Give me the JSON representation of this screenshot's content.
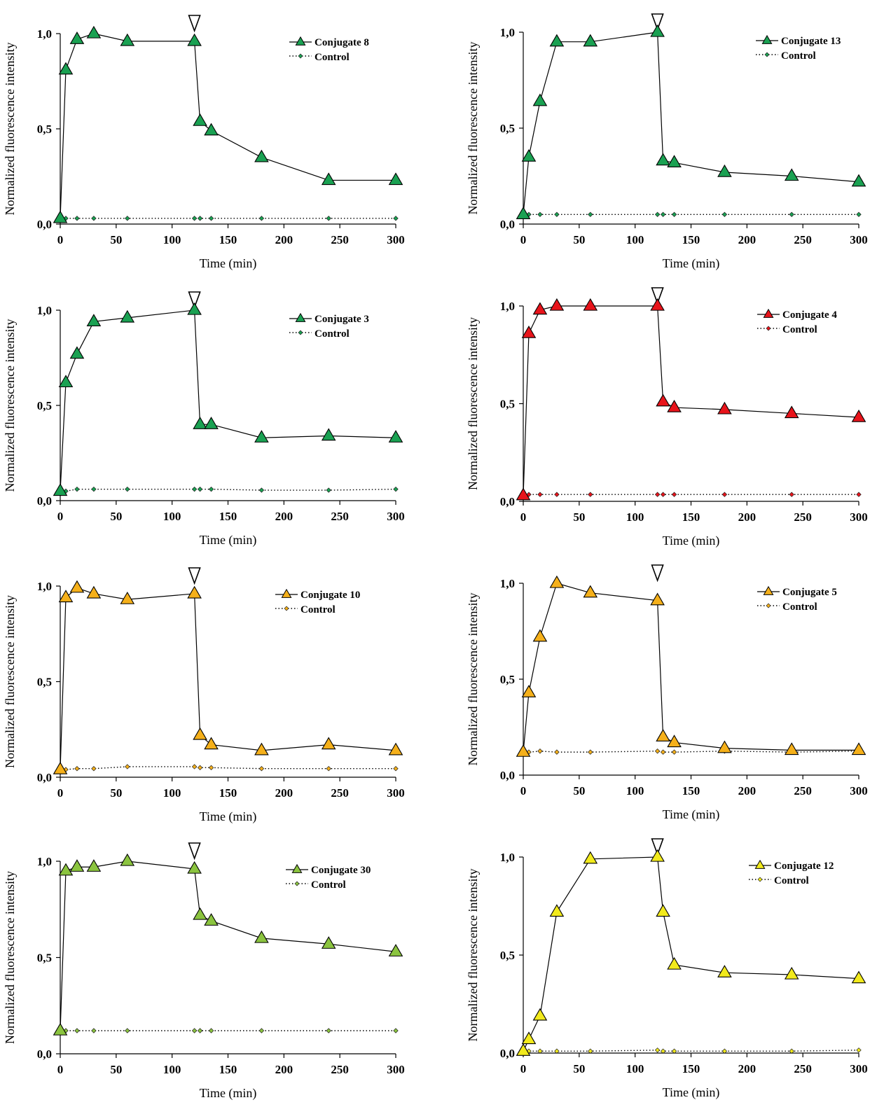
{
  "figure": {
    "panels": [
      {
        "id": "conj8",
        "legend": {
          "series_label": "Conjugate 8",
          "control_label": "Control"
        },
        "arrow": "▽"
      },
      {
        "id": "conj13",
        "legend": {
          "series_label": "Conjugate 13",
          "control_label": "Control"
        },
        "arrow": "▽"
      },
      {
        "id": "conj3",
        "legend": {
          "series_label": "Conjugate 3",
          "control_label": "Control"
        },
        "arrow": "▽"
      },
      {
        "id": "conj4",
        "legend": {
          "series_label": "Conjugate 4",
          "control_label": "Control"
        },
        "arrow": "▽"
      },
      {
        "id": "conj10",
        "legend": {
          "series_label": "Conjugate 10",
          "control_label": "Control"
        },
        "arrow": "▽"
      },
      {
        "id": "conj5",
        "legend": {
          "series_label": "Conjugate 5",
          "control_label": "Control"
        },
        "arrow": "▽"
      },
      {
        "id": "conj30",
        "legend": {
          "series_label": "Conjugate 30",
          "control_label": "Control"
        },
        "arrow": "▽"
      },
      {
        "id": "conj12",
        "legend": {
          "series_label": "Conjugate 12",
          "control_label": "Control"
        },
        "arrow": "▽"
      }
    ]
  },
  "chart_data": [
    {
      "type": "line",
      "xlabel": "Time (min)",
      "ylabel": "Normalized fluorescence intensity",
      "xlim": [
        0,
        300
      ],
      "ylim": [
        0,
        1.0
      ],
      "x_ticks": [
        "0",
        "50",
        "100",
        "150",
        "200",
        "250",
        "300"
      ],
      "y_ticks": [
        "0,0",
        "0,5",
        "1,0"
      ],
      "legend_position": "top-right",
      "grid": false,
      "marker_color": "#1aa152",
      "annotation": {
        "symbol": "▽",
        "x": 120
      },
      "series": [
        {
          "name": "Conjugate 8",
          "style": "solid-triangle",
          "x": [
            0,
            5,
            15,
            30,
            60,
            120,
            125,
            135,
            180,
            240,
            300
          ],
          "y": [
            0.03,
            0.81,
            0.97,
            1.0,
            0.96,
            0.96,
            0.54,
            0.49,
            0.35,
            0.23,
            0.23
          ]
        },
        {
          "name": "Control",
          "style": "dotted-diamond",
          "x": [
            0,
            5,
            15,
            30,
            60,
            120,
            125,
            135,
            180,
            240,
            300
          ],
          "y": [
            0.03,
            0.03,
            0.03,
            0.03,
            0.03,
            0.03,
            0.03,
            0.03,
            0.03,
            0.03,
            0.03
          ]
        }
      ]
    },
    {
      "type": "line",
      "xlabel": "Time (min)",
      "ylabel": "Normalized fluorescence intensity",
      "xlim": [
        0,
        300
      ],
      "ylim": [
        0,
        1.0
      ],
      "x_ticks": [
        "0",
        "50",
        "100",
        "150",
        "200",
        "250",
        "300"
      ],
      "y_ticks": [
        "0,0",
        "0,5",
        "1,0"
      ],
      "legend_position": "top-right",
      "grid": false,
      "marker_color": "#1aa152",
      "annotation": {
        "symbol": "▽",
        "x": 120
      },
      "series": [
        {
          "name": "Conjugate 13",
          "style": "solid-triangle",
          "x": [
            0,
            5,
            15,
            30,
            60,
            120,
            125,
            135,
            180,
            240,
            300
          ],
          "y": [
            0.05,
            0.35,
            0.64,
            0.95,
            0.95,
            1.0,
            0.33,
            0.32,
            0.27,
            0.25,
            0.22
          ]
        },
        {
          "name": "Control",
          "style": "dotted-diamond",
          "x": [
            0,
            5,
            15,
            30,
            60,
            120,
            125,
            135,
            180,
            240,
            300
          ],
          "y": [
            0.05,
            0.05,
            0.05,
            0.05,
            0.05,
            0.05,
            0.05,
            0.05,
            0.05,
            0.05,
            0.05
          ]
        }
      ]
    },
    {
      "type": "line",
      "xlabel": "Time (min)",
      "ylabel": "Normalized fluorescence intensity",
      "xlim": [
        0,
        300
      ],
      "ylim": [
        0,
        1.0
      ],
      "x_ticks": [
        "0",
        "50",
        "100",
        "150",
        "200",
        "250",
        "300"
      ],
      "y_ticks": [
        "0,0",
        "0,5",
        "1,0"
      ],
      "legend_position": "top-right",
      "grid": false,
      "marker_color": "#1aa152",
      "annotation": {
        "symbol": "▽",
        "x": 120
      },
      "series": [
        {
          "name": "Conjugate 3",
          "style": "solid-triangle",
          "x": [
            0,
            5,
            15,
            30,
            60,
            120,
            125,
            135,
            180,
            240,
            300
          ],
          "y": [
            0.05,
            0.62,
            0.77,
            0.94,
            0.96,
            1.0,
            0.4,
            0.4,
            0.33,
            0.34,
            0.33
          ]
        },
        {
          "name": "Control",
          "style": "dotted-diamond",
          "x": [
            0,
            5,
            15,
            30,
            60,
            120,
            125,
            135,
            180,
            240,
            300
          ],
          "y": [
            0.04,
            0.05,
            0.06,
            0.06,
            0.06,
            0.06,
            0.06,
            0.06,
            0.055,
            0.055,
            0.06
          ]
        }
      ]
    },
    {
      "type": "line",
      "xlabel": "Time (min)",
      "ylabel": "Normalized fluorescence intensity",
      "xlim": [
        0,
        300
      ],
      "ylim": [
        0,
        1.0
      ],
      "x_ticks": [
        "0",
        "50",
        "100",
        "150",
        "200",
        "250",
        "300"
      ],
      "y_ticks": [
        "0,0",
        "0,5",
        "1,0"
      ],
      "legend_position": "top-right",
      "grid": false,
      "marker_color": "#e8141b",
      "annotation": {
        "symbol": "▽",
        "x": 120
      },
      "series": [
        {
          "name": "Conjugate 4",
          "style": "solid-triangle",
          "x": [
            0,
            5,
            15,
            30,
            60,
            120,
            125,
            135,
            180,
            240,
            300
          ],
          "y": [
            0.03,
            0.86,
            0.98,
            1.0,
            1.0,
            1.0,
            0.51,
            0.48,
            0.47,
            0.45,
            0.43
          ]
        },
        {
          "name": "Control",
          "style": "dotted-diamond",
          "x": [
            0,
            5,
            15,
            30,
            60,
            120,
            125,
            135,
            180,
            240,
            300
          ],
          "y": [
            0.035,
            0.035,
            0.035,
            0.035,
            0.035,
            0.035,
            0.035,
            0.035,
            0.035,
            0.035,
            0.035
          ]
        }
      ]
    },
    {
      "type": "line",
      "xlabel": "Time (min)",
      "ylabel": "Normalized fluorescence intensity",
      "xlim": [
        0,
        300
      ],
      "ylim": [
        0,
        1.0
      ],
      "x_ticks": [
        "0",
        "50",
        "100",
        "150",
        "200",
        "250",
        "300"
      ],
      "y_ticks": [
        "0,0",
        "0,5",
        "1,0"
      ],
      "legend_position": "top-right",
      "grid": false,
      "marker_color": "#f5b01a",
      "annotation": {
        "symbol": "▽",
        "x": 120
      },
      "series": [
        {
          "name": "Conjugate 10",
          "style": "solid-triangle",
          "x": [
            0,
            5,
            15,
            30,
            60,
            120,
            125,
            135,
            180,
            240,
            300
          ],
          "y": [
            0.04,
            0.94,
            0.99,
            0.96,
            0.93,
            0.96,
            0.22,
            0.17,
            0.14,
            0.17,
            0.14
          ]
        },
        {
          "name": "Control",
          "style": "dotted-diamond",
          "x": [
            0,
            5,
            15,
            30,
            60,
            120,
            125,
            135,
            180,
            240,
            300
          ],
          "y": [
            0.04,
            0.04,
            0.045,
            0.045,
            0.055,
            0.055,
            0.05,
            0.05,
            0.045,
            0.045,
            0.045
          ]
        }
      ]
    },
    {
      "type": "line",
      "xlabel": "Time (min)",
      "ylabel": "Normalized fluorescence intensity",
      "xlim": [
        0,
        300
      ],
      "ylim": [
        0,
        1.0
      ],
      "x_ticks": [
        "0",
        "50",
        "100",
        "150",
        "200",
        "250",
        "300"
      ],
      "y_ticks": [
        "0,0",
        "0,5",
        "1,0"
      ],
      "legend_position": "top-right",
      "grid": false,
      "marker_color": "#f5b01a",
      "annotation": {
        "symbol": "▽",
        "x": 120
      },
      "series": [
        {
          "name": "Conjugate 5",
          "style": "solid-triangle",
          "x": [
            0,
            5,
            15,
            30,
            60,
            120,
            125,
            135,
            180,
            240,
            300
          ],
          "y": [
            0.12,
            0.43,
            0.72,
            1.0,
            0.95,
            0.91,
            0.2,
            0.17,
            0.14,
            0.13,
            0.13
          ]
        },
        {
          "name": "Control",
          "style": "dotted-diamond",
          "x": [
            0,
            5,
            15,
            30,
            60,
            120,
            125,
            135,
            180,
            240,
            300
          ],
          "y": [
            0.12,
            0.12,
            0.125,
            0.12,
            0.12,
            0.125,
            0.12,
            0.12,
            0.125,
            0.12,
            0.125
          ]
        }
      ]
    },
    {
      "type": "line",
      "xlabel": "Time (min)",
      "ylabel": "Normalized fluorescence intensity",
      "xlim": [
        0,
        300
      ],
      "ylim": [
        0,
        1.0
      ],
      "x_ticks": [
        "0",
        "50",
        "100",
        "150",
        "200",
        "250",
        "300"
      ],
      "y_ticks": [
        "0,0",
        "0,5",
        "1,0"
      ],
      "legend_position": "top-right",
      "grid": false,
      "marker_color": "#8bc43f",
      "annotation": {
        "symbol": "▽",
        "x": 120
      },
      "series": [
        {
          "name": "Conjugate 30",
          "style": "solid-triangle",
          "x": [
            0,
            5,
            15,
            30,
            60,
            120,
            125,
            135,
            180,
            240,
            300
          ],
          "y": [
            0.12,
            0.95,
            0.97,
            0.97,
            1.0,
            0.96,
            0.72,
            0.69,
            0.6,
            0.57,
            0.53
          ]
        },
        {
          "name": "Control",
          "style": "dotted-diamond",
          "x": [
            0,
            5,
            15,
            30,
            60,
            120,
            125,
            135,
            180,
            240,
            300
          ],
          "y": [
            0.12,
            0.12,
            0.12,
            0.12,
            0.12,
            0.12,
            0.12,
            0.12,
            0.12,
            0.12,
            0.12
          ]
        }
      ]
    },
    {
      "type": "line",
      "xlabel": "Time (min)",
      "ylabel": "Normalized fluorescence intensity",
      "xlim": [
        0,
        300
      ],
      "ylim": [
        0,
        1.0
      ],
      "x_ticks": [
        "0",
        "50",
        "100",
        "150",
        "200",
        "250",
        "300"
      ],
      "y_ticks": [
        "0,0",
        "0,5",
        "1,0"
      ],
      "legend_position": "top-right",
      "grid": false,
      "marker_color": "#f2ea1c",
      "annotation": {
        "symbol": "▽",
        "x": 120
      },
      "series": [
        {
          "name": "Conjugate 12",
          "style": "solid-triangle",
          "x": [
            0,
            5,
            15,
            30,
            60,
            120,
            125,
            135,
            180,
            240,
            300
          ],
          "y": [
            0.01,
            0.07,
            0.19,
            0.72,
            0.99,
            1.0,
            0.72,
            0.45,
            0.41,
            0.4,
            0.38
          ]
        },
        {
          "name": "Control",
          "style": "dotted-diamond",
          "x": [
            0,
            5,
            15,
            30,
            60,
            120,
            125,
            135,
            180,
            240,
            300
          ],
          "y": [
            0.01,
            0.01,
            0.01,
            0.01,
            0.01,
            0.015,
            0.01,
            0.01,
            0.01,
            0.01,
            0.015
          ]
        }
      ]
    }
  ]
}
